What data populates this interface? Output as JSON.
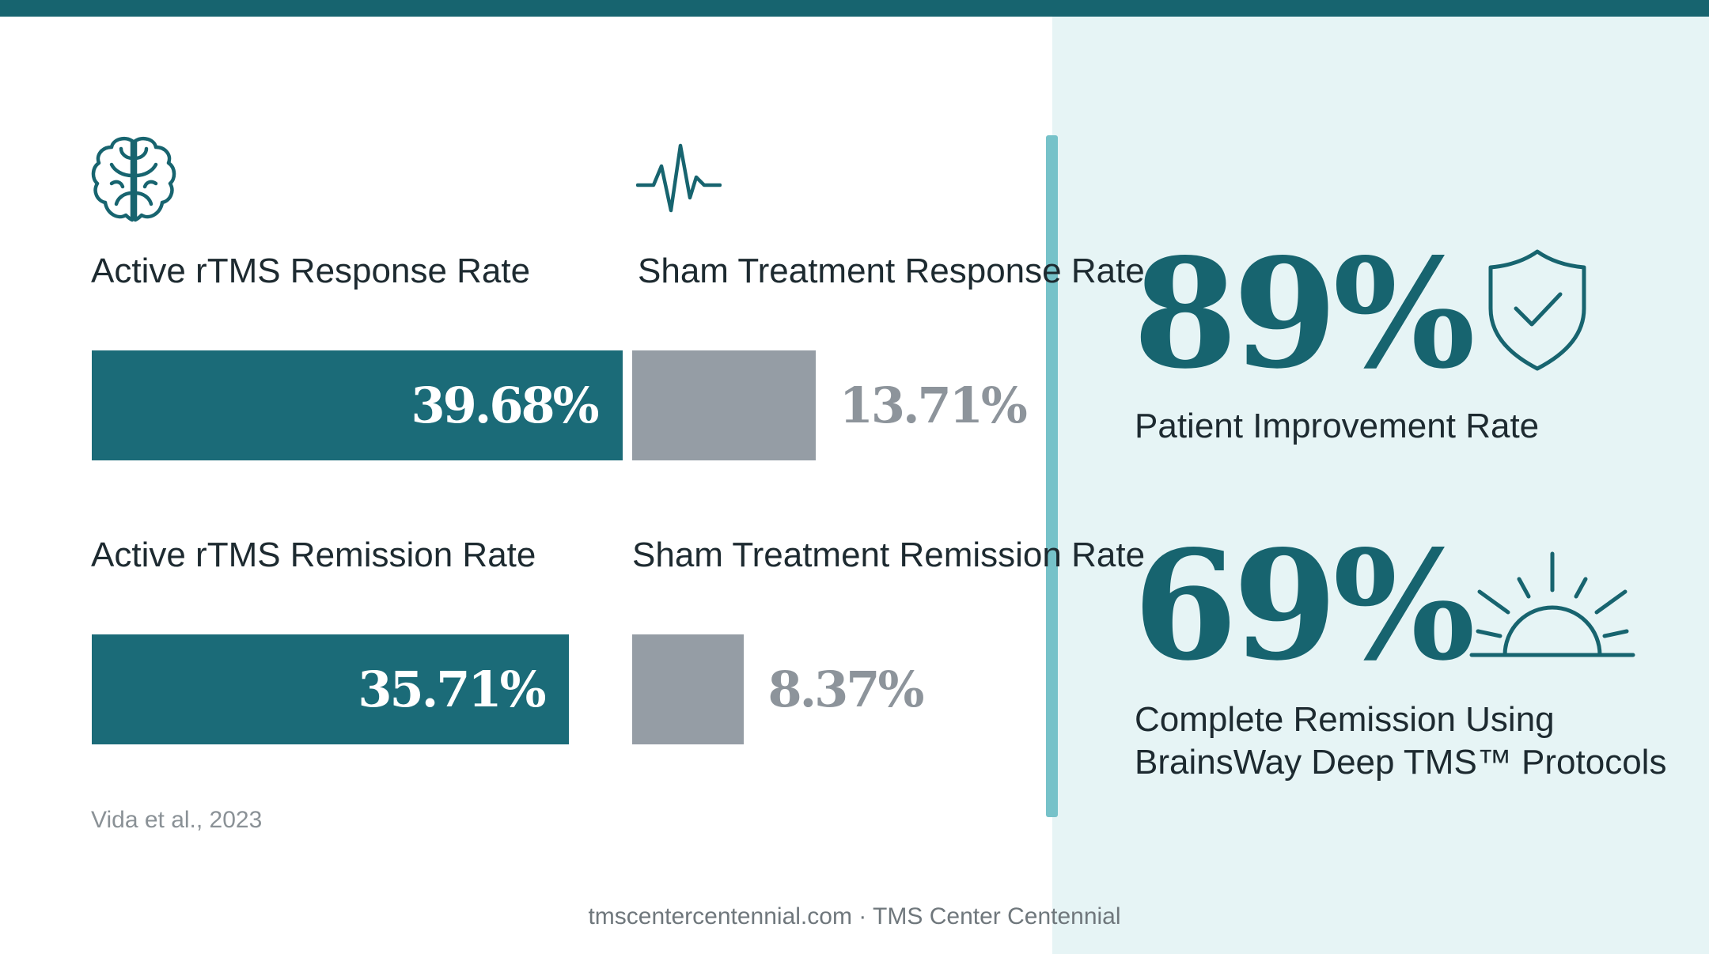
{
  "chart_data": {
    "type": "bar",
    "series": [
      {
        "name": "Active rTMS Response Rate",
        "value": 39.68,
        "value_label": "39.68%",
        "group": "active",
        "color": "#1b6b78"
      },
      {
        "name": "Sham Treatment Response Rate",
        "value": 13.71,
        "value_label": "13.71%",
        "group": "sham",
        "color": "#959da5"
      },
      {
        "name": "Active rTMS Remission Rate",
        "value": 35.71,
        "value_label": "35.71%",
        "group": "active",
        "color": "#1b6b78"
      },
      {
        "name": "Sham Treatment Remission Rate",
        "value": 8.37,
        "value_label": "8.37%",
        "group": "sham",
        "color": "#959da5"
      }
    ],
    "citation": "Vida et al., 2023"
  },
  "stats": [
    {
      "value": "89%",
      "label": "Patient Improvement Rate",
      "icon": "shield-check-icon"
    },
    {
      "value": "69%",
      "label": "Complete Remission Using\nBrainsWay Deep TMS™ Protocols",
      "icon": "sunrise-icon"
    }
  ],
  "icons": {
    "left": "brain-icon",
    "middle": "heartbeat-icon"
  },
  "footer": "tmscentercentennial.com · TMS Center Centennial",
  "colors": {
    "accent": "#17646f",
    "active_bar": "#1b6b78",
    "sham_bar": "#959da5",
    "panel_bg": "#e6f4f5",
    "divider": "#76c2c9"
  }
}
